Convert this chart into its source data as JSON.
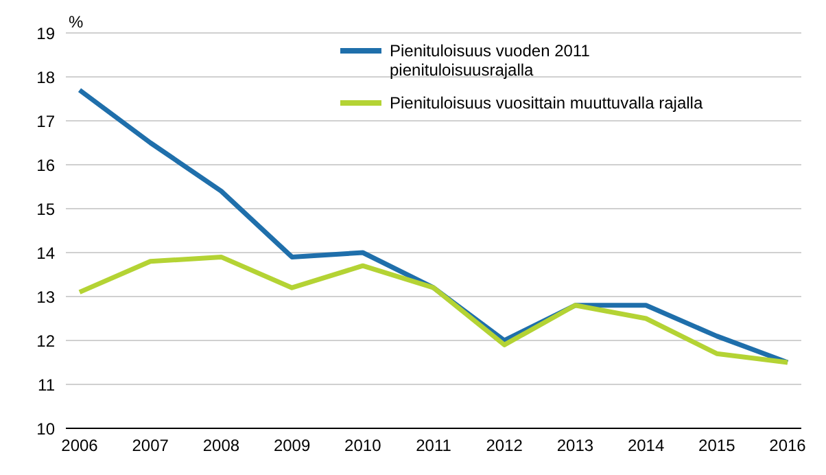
{
  "chart_data": {
    "type": "line",
    "ylabel": "%",
    "categories": [
      "2006",
      "2007",
      "2008",
      "2009",
      "2010",
      "2011",
      "2012",
      "2013",
      "2014",
      "2015",
      "2016"
    ],
    "series": [
      {
        "name": "Pienituloisuus vuoden 2011 pienituloisuusrajalla",
        "color": "#1f6fab",
        "values": [
          17.7,
          16.5,
          15.4,
          13.9,
          14.0,
          13.2,
          12.0,
          12.8,
          12.8,
          12.1,
          11.5
        ]
      },
      {
        "name": "Pienituloisuus vuosittain muuttuvalla rajalla",
        "color": "#b4d334",
        "values": [
          13.1,
          13.8,
          13.9,
          13.2,
          13.7,
          13.2,
          11.9,
          12.8,
          12.5,
          11.7,
          11.5
        ]
      }
    ],
    "ylim": [
      10,
      19
    ],
    "yticks": [
      10,
      11,
      12,
      13,
      14,
      15,
      16,
      17,
      18,
      19
    ],
    "grid": "y",
    "legend": "top right",
    "marker": "none",
    "line_style": "solid"
  }
}
